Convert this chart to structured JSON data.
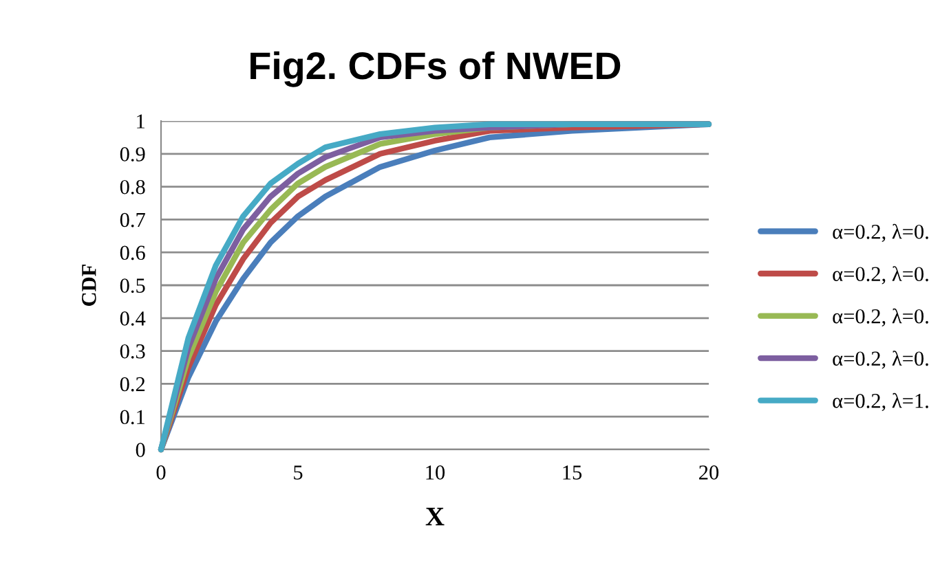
{
  "chart_data": {
    "type": "line",
    "title": "Fig2. CDFs of NWED",
    "xlabel": "X",
    "ylabel": "CDF",
    "x": [
      0,
      1,
      2,
      3,
      4,
      5,
      6,
      8,
      10,
      12,
      15,
      20
    ],
    "series": [
      {
        "name": "α=0.2, λ=0.",
        "color": "#4a7ebb",
        "values": [
          0,
          0.22,
          0.39,
          0.52,
          0.63,
          0.71,
          0.77,
          0.86,
          0.91,
          0.95,
          0.97,
          0.99
        ]
      },
      {
        "name": "α=0.2, λ=0.",
        "color": "#be4b48",
        "values": [
          0,
          0.25,
          0.44,
          0.58,
          0.69,
          0.77,
          0.82,
          0.9,
          0.94,
          0.97,
          0.98,
          0.99
        ]
      },
      {
        "name": "α=0.2, λ=0.",
        "color": "#98b954",
        "values": [
          0,
          0.28,
          0.48,
          0.63,
          0.73,
          0.81,
          0.86,
          0.93,
          0.96,
          0.98,
          0.99,
          0.99
        ]
      },
      {
        "name": "α=0.2, λ=0.",
        "color": "#7d5fa0",
        "values": [
          0,
          0.31,
          0.52,
          0.67,
          0.77,
          0.84,
          0.89,
          0.95,
          0.97,
          0.98,
          0.99,
          0.99
        ]
      },
      {
        "name": "α=0.2, λ=1.",
        "color": "#46aac5",
        "values": [
          0,
          0.34,
          0.56,
          0.71,
          0.81,
          0.87,
          0.92,
          0.96,
          0.98,
          0.99,
          0.99,
          0.99
        ]
      }
    ],
    "xlim": [
      0,
      20
    ],
    "xticks": [
      0,
      5,
      10,
      15,
      20
    ],
    "ylim": [
      0,
      1
    ],
    "yticks": [
      0,
      0.1,
      0.2,
      0.3,
      0.4,
      0.5,
      0.6,
      0.7,
      0.8,
      0.9,
      1
    ],
    "grid": "y",
    "legend": "right",
    "marker": "none",
    "line_style": "solid"
  }
}
